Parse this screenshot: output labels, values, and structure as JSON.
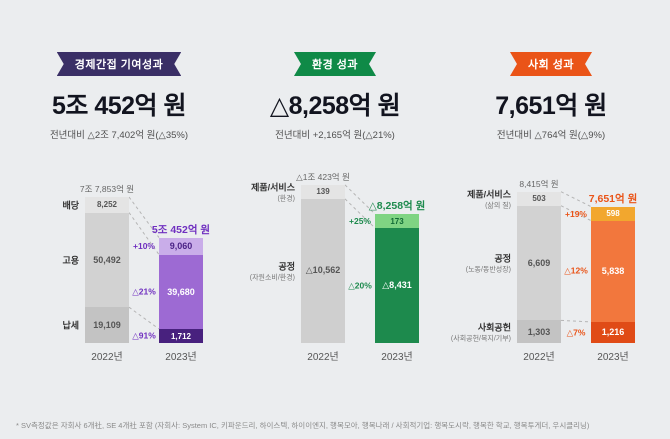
{
  "page": {
    "background": "#ebedef",
    "footnote": "* SV측정값은 자회사 6개社, SE 4개社 포함 (자회사: System IC, 키파운드리, 하이스텍, 하이이엔지, 행복모아, 행복나래 / 사회적기업: 행복도시락, 행복한 학교, 행복투게더, 우시클리닝)"
  },
  "sections": [
    {
      "badge": "경제간접 기여성과",
      "badge_color": "#3a2f66",
      "headline": "5조 452억 원",
      "subline": "전년대비 △2조 7,402억 원(△35%)",
      "accent": "#7030c0"
    },
    {
      "badge": "환경 성과",
      "badge_color": "#0f8a47",
      "headline": "△8,258억 원",
      "subline": "전년대비 +2,165억 원(△21%)",
      "accent": "#1d8a4d"
    },
    {
      "badge": "사회 성과",
      "badge_color": "#ea5418",
      "headline": "7,651억 원",
      "subline": "전년대비 △764억 원(△9%)",
      "accent": "#ea5418"
    }
  ],
  "chart_data": [
    {
      "type": "bar",
      "stacked": true,
      "title": "경제간접 기여성과",
      "unit": "억 원",
      "years": [
        "2022년",
        "2023년"
      ],
      "total_labels": [
        "7조 7,853억 원",
        "5조 452억 원"
      ],
      "total_colors": [
        "#666666",
        "#7030c0"
      ],
      "pct_color": "#7030c0",
      "rows": [
        {
          "label": "배당",
          "sublabel": "",
          "y2022": 8252,
          "y2023": 9060,
          "label2022": "8,252",
          "label2023": "9,060",
          "pct": "+10%",
          "color2022": "#e4e4e4",
          "color2023": "#c9ade9",
          "text2022": "#555555",
          "text2023": "#4b2386"
        },
        {
          "label": "고용",
          "sublabel": "",
          "y2022": 50492,
          "y2023": 39680,
          "label2022": "50,492",
          "label2023": "39,680",
          "pct": "△21%",
          "color2022": "#d2d2d2",
          "color2023": "#9d6ad3",
          "text2022": "#555555",
          "text2023": "#ffffff"
        },
        {
          "label": "납세",
          "sublabel": "",
          "y2022": 19109,
          "y2023": 1712,
          "label2022": "19,109",
          "label2023": "1,712",
          "pct": "△91%",
          "color2022": "#c3c3c3",
          "color2023": "#48217e",
          "text2022": "#555555",
          "text2023": "#ffffff"
        }
      ]
    },
    {
      "type": "bar",
      "stacked": true,
      "title": "환경 성과",
      "unit": "억 원",
      "years": [
        "2022년",
        "2023년"
      ],
      "total_labels": [
        "△1조 423억 원",
        "△8,258억 원"
      ],
      "total_colors": [
        "#666666",
        "#1d8a4d"
      ],
      "pct_color": "#1d8a4d",
      "rows": [
        {
          "label": "제품/서비스",
          "sublabel": "(환경)",
          "y2022": 139,
          "y2023": 173,
          "label2022": "139",
          "label2023": "173",
          "pct": "+25%",
          "color2022": "#e4e4e4",
          "color2023": "#7fd483",
          "text2022": "#555555",
          "text2023": "#116b36"
        },
        {
          "label": "공정",
          "sublabel": "(자원소비/환경)",
          "y2022": 10562,
          "y2023": 8431,
          "label2022": "△10,562",
          "label2023": "△8,431",
          "pct": "△20%",
          "color2022": "#cfcfcf",
          "color2023": "#1d8a4d",
          "text2022": "#555555",
          "text2023": "#ffffff"
        }
      ]
    },
    {
      "type": "bar",
      "stacked": true,
      "title": "사회 성과",
      "unit": "억 원",
      "years": [
        "2022년",
        "2023년"
      ],
      "total_labels": [
        "8,415억 원",
        "7,651억 원"
      ],
      "total_colors": [
        "#666666",
        "#ea5418"
      ],
      "pct_color": "#ea5418",
      "rows": [
        {
          "label": "제품/서비스",
          "sublabel": "(삶의 질)",
          "y2022": 503,
          "y2023": 598,
          "label2022": "503",
          "label2023": "598",
          "pct": "+19%",
          "color2022": "#e4e4e4",
          "color2023": "#f2a72e",
          "text2022": "#555555",
          "text2023": "#ffffff"
        },
        {
          "label": "공정",
          "sublabel": "(노동/동반성장)",
          "y2022": 6609,
          "y2023": 5838,
          "label2022": "6,609",
          "label2023": "5,838",
          "pct": "△12%",
          "color2022": "#d2d2d2",
          "color2023": "#f2773d",
          "text2022": "#555555",
          "text2023": "#ffffff"
        },
        {
          "label": "사회공헌",
          "sublabel": "(사회공헌/복지/기부)",
          "y2022": 1303,
          "y2023": 1216,
          "label2022": "1,303",
          "label2023": "1,216",
          "pct": "△7%",
          "color2022": "#c3c3c3",
          "color2023": "#e04b16",
          "text2022": "#555555",
          "text2023": "#ffffff"
        }
      ]
    }
  ]
}
